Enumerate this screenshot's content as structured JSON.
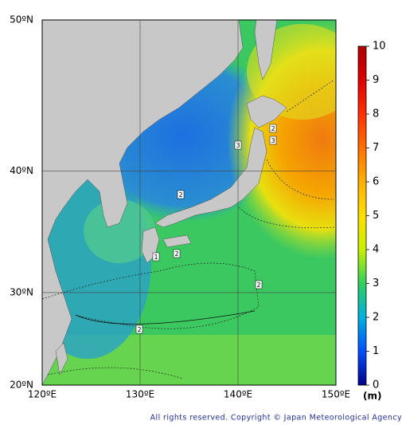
{
  "map": {
    "lon_ticks": [
      {
        "value": 120,
        "label": "120ºE"
      },
      {
        "value": 130,
        "label": "130ºE"
      },
      {
        "value": 140,
        "label": "140ºE"
      },
      {
        "value": 150,
        "label": "150ºE"
      }
    ],
    "lat_ticks": [
      {
        "value": 20,
        "label": "20ºN"
      },
      {
        "value": 30,
        "label": "30ºN"
      },
      {
        "value": 40,
        "label": "40ºN"
      },
      {
        "value": 50,
        "label": "50ºN"
      }
    ],
    "contour_labels": [
      "2",
      "2",
      "2",
      "2",
      "1",
      "2",
      "3",
      "3"
    ],
    "grid": true
  },
  "colorbar": {
    "ticks": [
      0,
      1,
      2,
      3,
      4,
      5,
      6,
      7,
      8,
      9,
      10
    ],
    "range": [
      0,
      10
    ],
    "colors": [
      "#00008c",
      "#0050ff",
      "#00b0e0",
      "#30d060",
      "#c8f000",
      "#ffe000",
      "#ffb000",
      "#ff7000",
      "#ff3000",
      "#e00000",
      "#b00000"
    ],
    "unit": "(m)"
  },
  "footer": {
    "copyright": "All rights reserved. Copyright © Japan Meteorological Agency"
  }
}
